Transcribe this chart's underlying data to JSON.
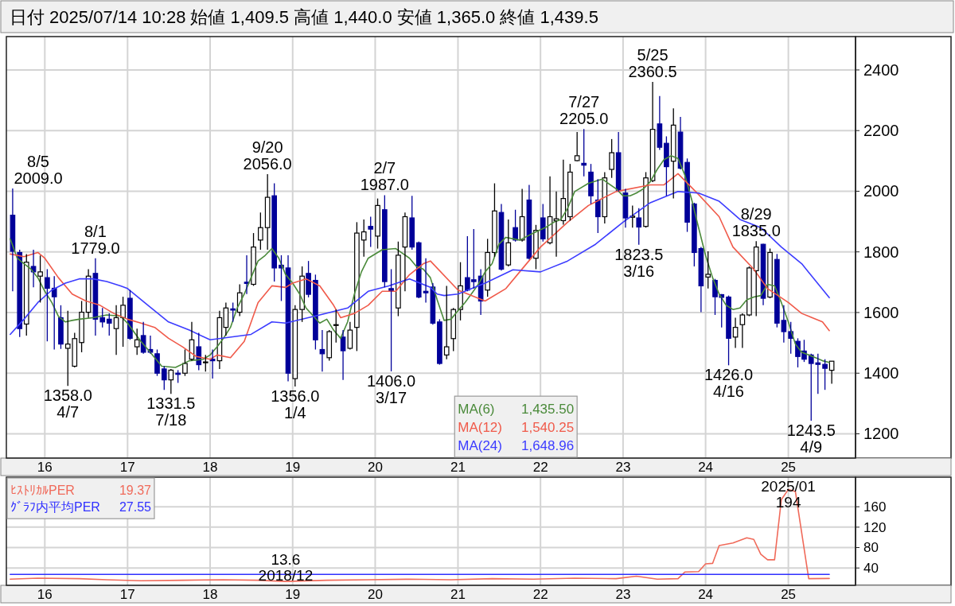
{
  "chart_data": [
    {
      "type": "candlestick",
      "title": "日付 2025/07/14 10:28 始値 1,409.5 高値 1,440.0 安値 1,365.0 終値 1,439.5",
      "x": [
        "2015-08",
        "2015-09",
        "2015-10",
        "2015-11",
        "2015-12",
        "2016-01",
        "2016-02",
        "2016-03",
        "2016-04",
        "2016-05",
        "2016-06",
        "2016-07",
        "2016-08",
        "2016-09",
        "2016-10",
        "2016-11",
        "2016-12",
        "2017-01",
        "2017-02",
        "2017-03",
        "2017-04",
        "2017-05",
        "2017-06",
        "2017-07",
        "2017-08",
        "2017-09",
        "2017-10",
        "2017-11",
        "2017-12",
        "2018-01",
        "2018-02",
        "2018-03",
        "2018-04",
        "2018-05",
        "2018-06",
        "2018-07",
        "2018-08",
        "2018-09",
        "2018-10",
        "2018-11",
        "2018-12",
        "2019-01",
        "2019-02",
        "2019-03",
        "2019-04",
        "2019-05",
        "2019-06",
        "2019-07",
        "2019-08",
        "2019-09",
        "2019-10",
        "2019-11",
        "2019-12",
        "2020-01",
        "2020-02",
        "2020-03",
        "2020-04",
        "2020-05",
        "2020-06",
        "2020-07",
        "2020-08",
        "2020-09",
        "2020-10",
        "2020-11",
        "2020-12",
        "2021-01",
        "2021-02",
        "2021-03",
        "2021-04",
        "2021-05",
        "2021-06",
        "2021-07",
        "2021-08",
        "2021-09",
        "2021-10",
        "2021-11",
        "2021-12",
        "2022-01",
        "2022-02",
        "2022-03",
        "2022-04",
        "2022-05",
        "2022-06",
        "2022-07",
        "2022-08",
        "2022-09",
        "2022-10",
        "2022-11",
        "2022-12",
        "2023-01",
        "2023-02",
        "2023-03",
        "2023-04",
        "2023-05",
        "2023-06",
        "2023-07",
        "2023-08",
        "2023-09",
        "2023-10",
        "2023-11",
        "2023-12",
        "2024-01",
        "2024-02",
        "2024-03",
        "2024-04",
        "2024-05",
        "2024-06",
        "2024-07",
        "2024-08",
        "2024-09",
        "2024-10",
        "2024-11",
        "2024-12",
        "2025-01",
        "2025-02",
        "2025-03",
        "2025-04",
        "2025-05",
        "2025-06",
        "2025-07"
      ],
      "ohlc": [
        [
          1921,
          2009,
          1670,
          1802
        ],
        [
          1798,
          1807,
          1519,
          1547
        ],
        [
          1562,
          1793,
          1524,
          1766
        ],
        [
          1752,
          1807,
          1683,
          1734
        ],
        [
          1720,
          1788,
          1633,
          1734
        ],
        [
          1715,
          1743,
          1505,
          1680
        ],
        [
          1680,
          1720,
          1478,
          1652
        ],
        [
          1583,
          1624,
          1480,
          1496
        ],
        [
          1482,
          1606,
          1358,
          1496
        ],
        [
          1423,
          1533,
          1419,
          1514
        ],
        [
          1501,
          1638,
          1469,
          1601
        ],
        [
          1601,
          1743,
          1583,
          1720
        ],
        [
          1729,
          1779,
          1524,
          1578
        ],
        [
          1583,
          1615,
          1551,
          1569
        ],
        [
          1578,
          1597,
          1524,
          1565
        ],
        [
          1547,
          1624,
          1460,
          1583
        ],
        [
          1583,
          1652,
          1487,
          1624
        ],
        [
          1647,
          1674,
          1510,
          1515
        ],
        [
          1487,
          1547,
          1460,
          1510
        ],
        [
          1524,
          1569,
          1464,
          1469
        ],
        [
          1478,
          1524,
          1464,
          1469
        ],
        [
          1464,
          1478,
          1391,
          1400
        ],
        [
          1414,
          1423,
          1345,
          1378
        ],
        [
          1378,
          1414,
          1331.5,
          1410
        ],
        [
          1400,
          1410,
          1368,
          1396
        ],
        [
          1400,
          1478,
          1391,
          1432
        ],
        [
          1446,
          1569,
          1441,
          1510
        ],
        [
          1487,
          1533,
          1410,
          1428
        ],
        [
          1435,
          1460,
          1405,
          1437
        ],
        [
          1446,
          1478,
          1382,
          1441
        ],
        [
          1441,
          1606,
          1414,
          1583
        ],
        [
          1551,
          1633,
          1524,
          1615
        ],
        [
          1612,
          1633,
          1569,
          1608
        ],
        [
          1601,
          1693,
          1588,
          1665
        ],
        [
          1700,
          1789,
          1661,
          1696
        ],
        [
          1693,
          1862,
          1688,
          1816
        ],
        [
          1839,
          1930,
          1807,
          1880
        ],
        [
          1880,
          2056,
          1807,
          1980
        ],
        [
          1985,
          2026,
          1702,
          1747
        ],
        [
          1756,
          1789,
          1638,
          1747
        ],
        [
          1747,
          1789,
          1373,
          1400
        ],
        [
          1382,
          1624,
          1356,
          1610
        ],
        [
          1610,
          1752,
          1569,
          1720
        ],
        [
          1729,
          1770,
          1650,
          1660
        ],
        [
          1706,
          1725,
          1478,
          1510
        ],
        [
          1478,
          1542,
          1405,
          1464
        ],
        [
          1451,
          1542,
          1441,
          1537
        ],
        [
          1558,
          1610,
          1501,
          1560
        ],
        [
          1519,
          1542,
          1378,
          1474
        ],
        [
          1482,
          1569,
          1478,
          1542
        ],
        [
          1551,
          1898,
          1473,
          1862
        ],
        [
          1839,
          1907,
          1784,
          1866
        ],
        [
          1884,
          1916,
          1816,
          1875
        ],
        [
          1852,
          1976,
          1811,
          1953
        ],
        [
          1939,
          1987,
          1683,
          1702
        ],
        [
          1679,
          1743,
          1406,
          1672
        ],
        [
          1615,
          1834,
          1588,
          1789
        ],
        [
          1816,
          1930,
          1670,
          1916
        ],
        [
          1912,
          1985,
          1807,
          1816
        ],
        [
          1830,
          1834,
          1647,
          1651
        ],
        [
          1670,
          1779,
          1633,
          1665
        ],
        [
          1684,
          1697,
          1560,
          1565
        ],
        [
          1569,
          1578,
          1428,
          1432
        ],
        [
          1460,
          1688,
          1446,
          1487
        ],
        [
          1514,
          1615,
          1473,
          1610
        ],
        [
          1610,
          1766,
          1574,
          1688
        ],
        [
          1715,
          1852,
          1670,
          1674
        ],
        [
          1708,
          1875,
          1679,
          1702
        ],
        [
          1720,
          1743,
          1592,
          1638
        ],
        [
          1674,
          1843,
          1652,
          1798
        ],
        [
          1798,
          2026,
          1784,
          1935
        ],
        [
          1930,
          1958,
          1738,
          1743
        ],
        [
          1757,
          1907,
          1752,
          1830
        ],
        [
          1880,
          1939,
          1834,
          1839
        ],
        [
          1839,
          2008,
          1834,
          1916
        ],
        [
          1971,
          2021,
          1775,
          1779
        ],
        [
          1779,
          1889,
          1743,
          1871
        ],
        [
          1912,
          1958,
          1834,
          1843
        ],
        [
          1830,
          2049,
          1825,
          1916
        ],
        [
          1903,
          1999,
          1784,
          1909
        ],
        [
          1903,
          2104,
          1890,
          1976
        ],
        [
          1916,
          2090,
          1903,
          2063
        ],
        [
          2101,
          2195,
          2099,
          2117
        ],
        [
          2092,
          2205,
          2049,
          2086
        ],
        [
          2063,
          2090,
          1958,
          1985
        ],
        [
          1971,
          2040,
          1862,
          1916
        ],
        [
          1916,
          2063,
          1894,
          2044
        ],
        [
          2072,
          2172,
          2044,
          2127
        ],
        [
          2127,
          2195,
          1999,
          2003
        ],
        [
          1994,
          2008,
          1880,
          1912
        ],
        [
          1914,
          1953,
          1880,
          1918
        ],
        [
          1912,
          1944,
          1823.5,
          1882
        ],
        [
          1884,
          2063,
          1880,
          2044
        ],
        [
          2035,
          2360.5,
          2030,
          2204
        ],
        [
          2222,
          2314,
          2136,
          2145
        ],
        [
          2158,
          2181,
          1985,
          2081
        ],
        [
          2099,
          2273,
          1976,
          2218
        ],
        [
          2195,
          2245,
          2072,
          2076
        ],
        [
          2095,
          2108,
          1866,
          1898
        ],
        [
          1958,
          1962,
          1752,
          1798
        ],
        [
          1811,
          1816,
          1601,
          1688
        ],
        [
          1717,
          1802,
          1679,
          1726
        ],
        [
          1706,
          1711,
          1592,
          1652
        ],
        [
          1659,
          1661,
          1551,
          1650
        ],
        [
          1651,
          1656,
          1426,
          1515
        ],
        [
          1519,
          1583,
          1483,
          1551
        ],
        [
          1560,
          1597,
          1483,
          1592
        ],
        [
          1592,
          1752,
          1588,
          1747
        ],
        [
          1738,
          1835,
          1588,
          1816
        ],
        [
          1825,
          1827,
          1624,
          1647
        ],
        [
          1651,
          1811,
          1647,
          1798
        ],
        [
          1775,
          1793,
          1551,
          1565
        ],
        [
          1574,
          1624,
          1501,
          1537
        ],
        [
          1537,
          1569,
          1464,
          1515
        ],
        [
          1505,
          1515,
          1419,
          1455
        ],
        [
          1473,
          1510,
          1437,
          1446
        ],
        [
          1460,
          1464,
          1243.5,
          1432
        ],
        [
          1434,
          1464,
          1332,
          1429
        ],
        [
          1429,
          1446,
          1345,
          1416
        ],
        [
          1409.5,
          1440,
          1365,
          1439.5
        ]
      ],
      "series": [
        {
          "name": "MA(6)",
          "type": "line",
          "color": "#4a8a3a",
          "x": [
            "2015-08",
            "2015-09",
            "2015-10",
            "2015-11",
            "2015-12",
            "2016-01",
            "2016-02",
            "2016-03",
            "2016-04",
            "2016-05",
            "2016-06",
            "2016-08",
            "2016-10",
            "2016-12",
            "2017-01",
            "2017-02",
            "2017-03",
            "2017-04",
            "2017-05",
            "2017-06",
            "2017-08",
            "2017-10",
            "2017-12",
            "2018-01",
            "2018-02",
            "2018-03",
            "2018-04",
            "2018-05",
            "2018-06",
            "2018-07",
            "2018-08",
            "2018-09",
            "2018-10",
            "2018-11",
            "2018-12",
            "2019-01",
            "2019-02",
            "2019-03",
            "2019-05",
            "2019-06",
            "2019-07",
            "2019-08",
            "2019-09",
            "2019-10",
            "2019-11",
            "2019-12",
            "2020-02",
            "2020-04",
            "2020-06",
            "2020-07",
            "2020-08",
            "2020-09",
            "2020-10",
            "2020-11",
            "2020-12",
            "2021-01",
            "2021-02",
            "2021-03",
            "2021-04",
            "2021-05",
            "2021-06",
            "2021-07",
            "2021-08",
            "2021-10",
            "2021-12",
            "2022-02",
            "2022-03",
            "2022-04",
            "2022-05",
            "2022-06",
            "2022-08",
            "2022-10",
            "2022-12",
            "2023-01",
            "2023-02",
            "2023-03",
            "2023-04",
            "2023-05",
            "2023-06",
            "2023-07",
            "2023-08",
            "2023-09",
            "2023-10",
            "2023-11",
            "2023-12",
            "2024-01",
            "2024-02",
            "2024-03",
            "2024-04",
            "2024-05",
            "2024-06",
            "2024-07",
            "2024-08",
            "2024-09",
            "2024-10",
            "2024-11",
            "2024-12",
            "2025-01",
            "2025-02",
            "2025-03",
            "2025-04",
            "2025-05",
            "2025-06",
            "2025-07"
          ],
          "values": [
            1843,
            1779,
            1761,
            1743,
            1715,
            1670,
            1633,
            1588,
            1569,
            1574,
            1578,
            1583,
            1592,
            1588,
            1565,
            1533,
            1505,
            1478,
            1451,
            1423,
            1419,
            1441,
            1446,
            1460,
            1487,
            1515,
            1551,
            1615,
            1661,
            1715,
            1770,
            1788,
            1811,
            1779,
            1725,
            1697,
            1661,
            1615,
            1565,
            1578,
            1542,
            1515,
            1569,
            1661,
            1734,
            1779,
            1807,
            1811,
            1779,
            1752,
            1743,
            1715,
            1642,
            1574,
            1578,
            1606,
            1633,
            1661,
            1693,
            1734,
            1761,
            1825,
            1848,
            1839,
            1862,
            1884,
            1898,
            1907,
            1944,
            1999,
            2026,
            2040,
            2008,
            1985,
            1985,
            1994,
            2008,
            2031,
            2072,
            2104,
            2117,
            2108,
            2054,
            1971,
            1880,
            1788,
            1715,
            1661,
            1624,
            1610,
            1615,
            1642,
            1651,
            1656,
            1693,
            1688,
            1633,
            1569,
            1496,
            1469,
            1460,
            1451,
            1441,
            1435.5
          ]
        },
        {
          "name": "MA(12)",
          "type": "line",
          "color": "#f05a4a",
          "x": [
            "2015-08",
            "2015-10",
            "2015-12",
            "2016-01",
            "2016-03",
            "2016-05",
            "2016-07",
            "2016-09",
            "2016-11",
            "2017-01",
            "2017-03",
            "2017-05",
            "2017-07",
            "2017-09",
            "2017-11",
            "2018-01",
            "2018-02",
            "2018-04",
            "2018-06",
            "2018-08",
            "2018-10",
            "2018-12",
            "2019-01",
            "2019-03",
            "2019-05",
            "2019-07",
            "2019-08",
            "2019-10",
            "2019-12",
            "2020-02",
            "2020-04",
            "2020-06",
            "2020-08",
            "2020-09",
            "2021-01",
            "2021-05",
            "2021-08",
            "2021-10",
            "2022-01",
            "2022-05",
            "2022-08",
            "2022-12",
            "2023-05",
            "2023-07",
            "2023-09",
            "2023-12",
            "2024-03",
            "2024-05",
            "2024-08",
            "2024-10",
            "2025-01",
            "2025-03",
            "2025-06",
            "2025-07"
          ],
          "values": [
            1793,
            1784,
            1798,
            1779,
            1715,
            1661,
            1638,
            1624,
            1597,
            1578,
            1565,
            1551,
            1515,
            1487,
            1455,
            1446,
            1460,
            1451,
            1505,
            1633,
            1688,
            1683,
            1697,
            1711,
            1688,
            1624,
            1583,
            1597,
            1624,
            1670,
            1670,
            1725,
            1761,
            1770,
            1674,
            1638,
            1679,
            1734,
            1816,
            1898,
            1953,
            1999,
            2021,
            2021,
            2058,
            1989,
            1916,
            1816,
            1743,
            1679,
            1633,
            1597,
            1569,
            1540.25
          ]
        },
        {
          "name": "MA(24)",
          "type": "line",
          "color": "#3c3cff",
          "x": [
            "2015-08",
            "2015-10",
            "2015-12",
            "2016-02",
            "2016-04",
            "2016-06",
            "2016-08",
            "2016-10",
            "2016-12",
            "2017-01",
            "2017-04",
            "2017-07",
            "2017-10",
            "2018-01",
            "2018-07",
            "2018-10",
            "2018-12",
            "2019-05",
            "2019-09",
            "2019-12",
            "2020-03",
            "2020-06",
            "2020-09",
            "2020-10",
            "2020-11",
            "2021-01",
            "2021-05",
            "2021-09",
            "2022-01",
            "2022-05",
            "2022-09",
            "2023-01",
            "2023-05",
            "2023-09",
            "2023-12",
            "2024-03",
            "2024-06",
            "2024-09",
            "2024-12",
            "2025-03",
            "2025-07"
          ],
          "values": [
            1528,
            1578,
            1633,
            1674,
            1697,
            1711,
            1711,
            1702,
            1688,
            1679,
            1624,
            1569,
            1542,
            1510,
            1528,
            1569,
            1565,
            1592,
            1615,
            1670,
            1688,
            1711,
            1683,
            1661,
            1656,
            1661,
            1697,
            1741,
            1734,
            1770,
            1825,
            1898,
            1962,
            1999,
            1994,
            1967,
            1907,
            1880,
            1816,
            1761,
            1648.96
          ]
        }
      ],
      "xlim": [
        "2015-07-15",
        "2025-10-25"
      ],
      "xticks": [
        {
          "value": "2016-01",
          "label": "16"
        },
        {
          "value": "2017-01",
          "label": "17"
        },
        {
          "value": "2018-01",
          "label": "18"
        },
        {
          "value": "2019-01",
          "label": "19"
        },
        {
          "value": "2020-01",
          "label": "20"
        },
        {
          "value": "2021-01",
          "label": "21"
        },
        {
          "value": "2022-01",
          "label": "22"
        },
        {
          "value": "2023-01",
          "label": "23"
        },
        {
          "value": "2024-01",
          "label": "24"
        },
        {
          "value": "2025-01",
          "label": "25"
        }
      ],
      "ylim": [
        1120,
        2510
      ],
      "yticks": [
        1200,
        1400,
        1600,
        1800,
        2000,
        2200,
        2400
      ],
      "grid": true,
      "legend": "bottom",
      "annotations": [
        {
          "text": "8/5\n2009.0",
          "x": "2015-08",
          "y": 2009
        },
        {
          "text": "8/1\n1779.0",
          "x": "2016-08",
          "y": 1779
        },
        {
          "text": "1358.0\n4/7",
          "x": "2016-04",
          "y": 1358
        },
        {
          "text": "1331.5\n7/18",
          "x": "2017-07",
          "y": 1331.5
        },
        {
          "text": "9/20\n2056.0",
          "x": "2018-09",
          "y": 2056
        },
        {
          "text": "1356.0\n1/4",
          "x": "2019-01",
          "y": 1356
        },
        {
          "text": "2/7\n1987.0",
          "x": "2020-02",
          "y": 1987
        },
        {
          "text": "1406.0\n3/17",
          "x": "2020-03",
          "y": 1406
        },
        {
          "text": "7/27\n2205.0",
          "x": "2022-07",
          "y": 2205
        },
        {
          "text": "1823.5\n3/16",
          "x": "2023-03",
          "y": 1823.5
        },
        {
          "text": "5/25\n2360.5",
          "x": "2023-05",
          "y": 2360.5
        },
        {
          "text": "1426.0\n4/16",
          "x": "2024-04",
          "y": 1426
        },
        {
          "text": "8/29\n1835.0",
          "x": "2024-08",
          "y": 1835
        },
        {
          "text": "1243.5\n4/9",
          "x": "2025-04",
          "y": 1243.5
        },
        "1,435.50",
        "1,540.25",
        "1,648.96"
      ]
    },
    {
      "type": "line",
      "series": [
        {
          "name": "ﾋｽﾄﾘｶﾙPER",
          "color": "#f06a5a",
          "x": [
            "2015-08",
            "2015-12",
            "2016-06",
            "2016-10",
            "2017-03",
            "2017-09",
            "2018-03",
            "2018-08",
            "2018-12",
            "2019-06",
            "2019-12",
            "2020-06",
            "2020-12",
            "2021-06",
            "2021-12",
            "2022-06",
            "2022-12",
            "2023-03",
            "2023-06",
            "2023-09",
            "2023-10",
            "2023-12",
            "2024-01",
            "2024-02",
            "2024-03",
            "2024-05",
            "2024-07",
            "2024-08",
            "2024-09",
            "2024-10",
            "2024-11",
            "2024-12",
            "2025-01",
            "2025-02",
            "2025-04",
            "2025-07"
          ],
          "values": [
            18,
            20,
            19,
            17,
            15,
            16,
            17,
            16,
            13.6,
            16,
            17,
            18,
            17,
            19,
            18,
            20,
            19,
            24,
            18,
            19,
            32,
            33,
            48,
            49,
            84,
            89,
            99,
            96,
            67,
            56,
            56,
            174,
            194,
            190,
            19,
            19.37
          ]
        },
        {
          "name": "ｸﾞﾗﾌ内平均PER",
          "color": "#3030ff",
          "x": [
            "2015-08",
            "2025-07"
          ],
          "values": [
            27.55,
            27.55
          ]
        }
      ],
      "xlim": [
        "2015-07-15",
        "2025-10-25"
      ],
      "xticks": [
        {
          "value": "2016-01",
          "label": "16"
        },
        {
          "value": "2017-01",
          "label": "17"
        },
        {
          "value": "2018-01",
          "label": "18"
        },
        {
          "value": "2019-01",
          "label": "19"
        },
        {
          "value": "2020-01",
          "label": "20"
        },
        {
          "value": "2021-01",
          "label": "21"
        },
        {
          "value": "2022-01",
          "label": "22"
        },
        {
          "value": "2023-01",
          "label": "23"
        },
        {
          "value": "2024-01",
          "label": "24"
        },
        {
          "value": "2025-01",
          "label": "25"
        }
      ],
      "ylim": [
        6,
        218
      ],
      "yticks": [
        40,
        80,
        120,
        160
      ],
      "grid": true,
      "legend": "top left",
      "annotations": [
        {
          "text": "13.6\n2018/12",
          "x": "2018-12",
          "y": 13.6
        },
        {
          "text": "2025/01\n194",
          "x": "2025-01",
          "y": 194
        },
        "19.37",
        "27.55"
      ]
    }
  ]
}
